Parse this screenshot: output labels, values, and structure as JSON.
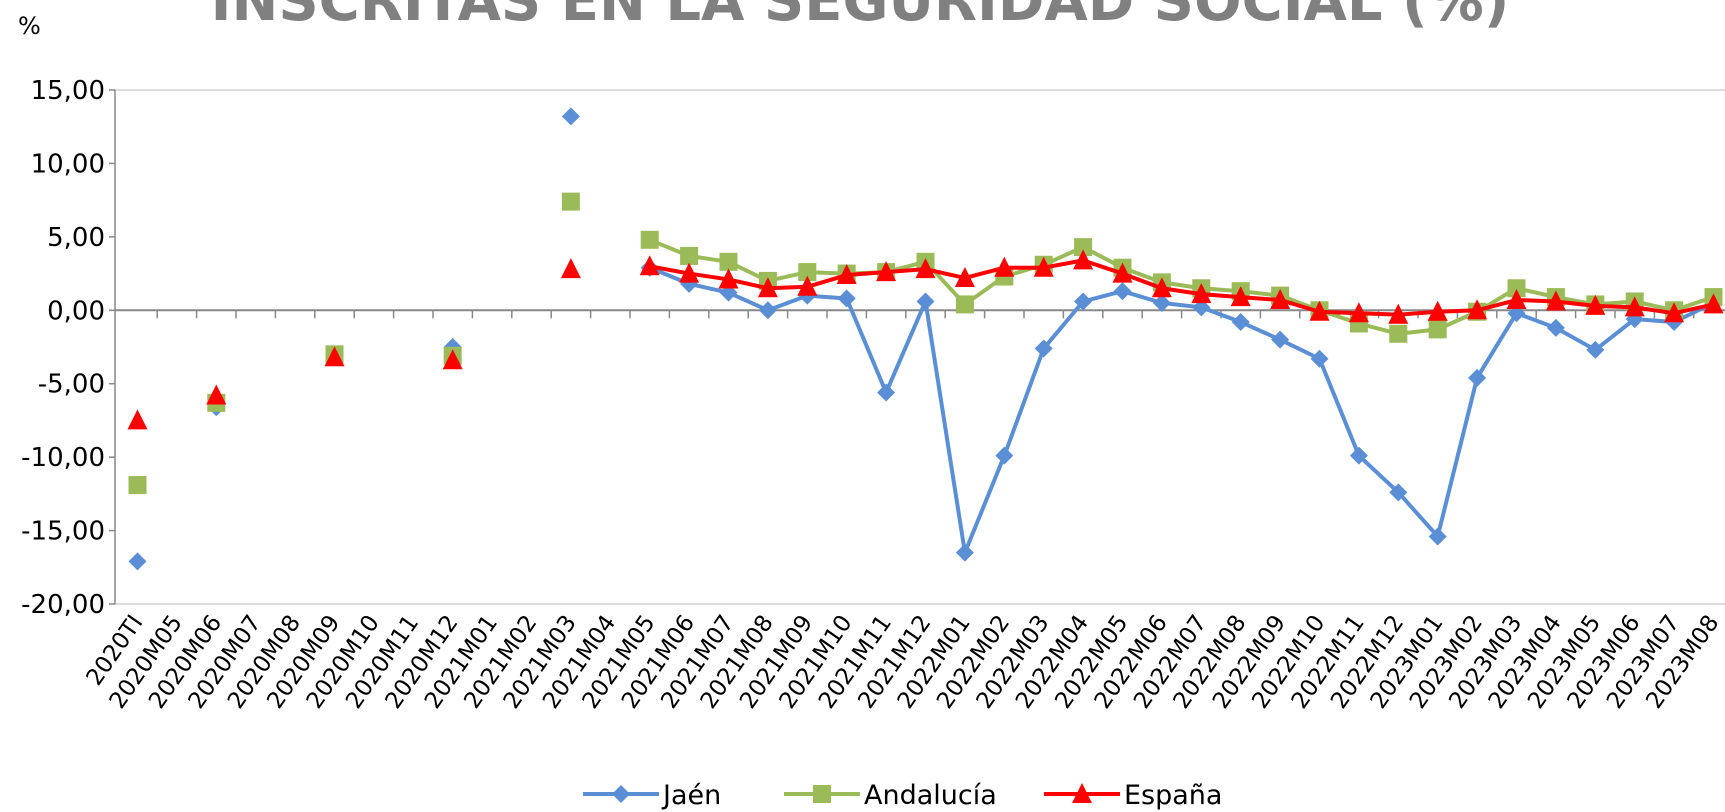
{
  "chart_data": {
    "type": "line",
    "title": "INSCRITAS EN LA SEGURIDAD SOCIAL (%)",
    "y_unit": "%",
    "categories": [
      "2020TI",
      "2020M05",
      "2020M06",
      "2020M07",
      "2020M08",
      "2020M09",
      "2020M10",
      "2020M11",
      "2020M12",
      "2021M01",
      "2021M02",
      "2021M03",
      "2021M04",
      "2021M05",
      "2021M06",
      "2021M07",
      "2021M08",
      "2021M09",
      "2021M10",
      "2021M11",
      "2021M12",
      "2022M01",
      "2022M02",
      "2022M03",
      "2022M04",
      "2022M05",
      "2022M06",
      "2022M07",
      "2022M08",
      "2022M09",
      "2022M10",
      "2022M11",
      "2022M12",
      "2023M01",
      "2023M02",
      "2023M03",
      "2023M04",
      "2023M05",
      "2023M06",
      "2023M07",
      "2023M08"
    ],
    "series": [
      {
        "name": "Jaén",
        "color": "#5a8fd6",
        "marker": "diamond",
        "values": [
          -17.1,
          null,
          -6.6,
          null,
          null,
          -3.0,
          null,
          null,
          -2.5,
          null,
          null,
          13.2,
          null,
          2.9,
          1.8,
          1.2,
          0.0,
          1.0,
          0.8,
          -5.6,
          0.6,
          -16.5,
          -9.9,
          -2.6,
          0.6,
          1.3,
          0.5,
          0.2,
          -0.8,
          -2.0,
          -3.3,
          -9.9,
          -12.4,
          -15.4,
          -4.6,
          -0.2,
          -1.2,
          -2.7,
          -0.6,
          -0.8,
          0.5
        ]
      },
      {
        "name": "Andalucía",
        "color": "#9bbb59",
        "marker": "square",
        "values": [
          -11.9,
          null,
          -6.3,
          null,
          null,
          -3.0,
          null,
          null,
          -3.1,
          null,
          null,
          7.4,
          null,
          4.8,
          3.7,
          3.3,
          2.0,
          2.6,
          2.5,
          2.6,
          3.3,
          0.4,
          2.3,
          3.1,
          4.3,
          2.9,
          1.9,
          1.5,
          1.3,
          1.0,
          0.0,
          -0.9,
          -1.6,
          -1.3,
          -0.1,
          1.5,
          0.9,
          0.4,
          0.6,
          0.0,
          0.9
        ]
      },
      {
        "name": "España",
        "color": "#ff0000",
        "marker": "triangle",
        "values": [
          -7.5,
          null,
          -5.8,
          null,
          null,
          -3.2,
          null,
          null,
          -3.4,
          null,
          null,
          2.8,
          null,
          3.0,
          2.5,
          2.1,
          1.5,
          1.6,
          2.4,
          2.6,
          2.8,
          2.2,
          2.9,
          2.9,
          3.4,
          2.5,
          1.5,
          1.1,
          0.9,
          0.7,
          -0.1,
          -0.2,
          -0.3,
          -0.1,
          0.0,
          0.7,
          0.6,
          0.3,
          0.2,
          -0.2,
          0.4
        ]
      }
    ],
    "ylim": [
      -20,
      15
    ],
    "yticks": [
      {
        "value": -20,
        "label": "-20,00"
      },
      {
        "value": -15,
        "label": "-15,00"
      },
      {
        "value": -10,
        "label": "-10,00"
      },
      {
        "value": -5,
        "label": "-5,00"
      },
      {
        "value": 0,
        "label": "0,00"
      },
      {
        "value": 5,
        "label": "5,00"
      },
      {
        "value": 10,
        "label": "10,00"
      },
      {
        "value": 15,
        "label": "15,00"
      }
    ],
    "legend": "bottom"
  }
}
